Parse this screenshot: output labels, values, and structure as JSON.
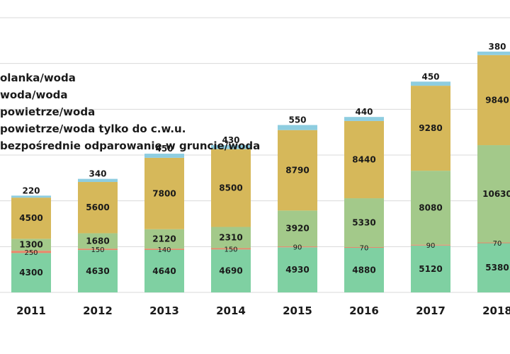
{
  "chart_data": {
    "type": "bar",
    "stacked": true,
    "categories": [
      "2011",
      "2012",
      "2013",
      "2014",
      "2015",
      "2016",
      "2017",
      "2018"
    ],
    "series": [
      {
        "name": "...bezpośrednie odparowanie w gruncie/woda",
        "color": "#7fd0a2",
        "values": [
          4300,
          4630,
          4640,
          4690,
          4930,
          4880,
          5120,
          5380
        ]
      },
      {
        "name": "...powietrze/woda tylko do c.w.u.",
        "color": "#e8866a",
        "values": [
          250,
          150,
          140,
          150,
          90,
          70,
          90,
          70
        ]
      },
      {
        "name": "...powietrze/woda",
        "color": "#a3c98a",
        "values": [
          1300,
          1680,
          2120,
          2310,
          3920,
          5330,
          8080,
          10630
        ]
      },
      {
        "name": "...woda/woda",
        "color": "#d6b85a",
        "values": [
          4500,
          5600,
          7800,
          8500,
          8790,
          8440,
          9280,
          9840
        ]
      },
      {
        "name": "...olanka/woda",
        "color": "#8ecde0",
        "values": [
          220,
          340,
          450,
          430,
          550,
          440,
          450,
          380
        ]
      }
    ],
    "value_labels": [
      [
        "4300",
        "4630",
        "4640",
        "4690",
        "4930",
        "4880",
        "5120",
        "5380"
      ],
      [
        "250",
        "150",
        "140",
        "150",
        "90",
        "70",
        "90",
        "70"
      ],
      [
        "1300",
        "1680",
        "2120",
        "2310",
        "3920",
        "5330",
        "8080",
        "10630"
      ],
      [
        "4500",
        "5600",
        "7800",
        "8500",
        "8790",
        "8440",
        "9280",
        "9840"
      ],
      [
        "220",
        "340",
        "450",
        "430",
        "550",
        "440",
        "450",
        "380"
      ]
    ],
    "legend_entries": [
      "olanka/woda",
      "woda/woda",
      "powietrze/woda",
      "powietrze/woda tylko do c.w.u.",
      "bezpośrednie odparowanie w gruncie/woda"
    ],
    "ylim": [
      0,
      30000
    ],
    "grid": true,
    "legend_position": "top-left",
    "title": "",
    "xlabel": "",
    "ylabel": ""
  }
}
